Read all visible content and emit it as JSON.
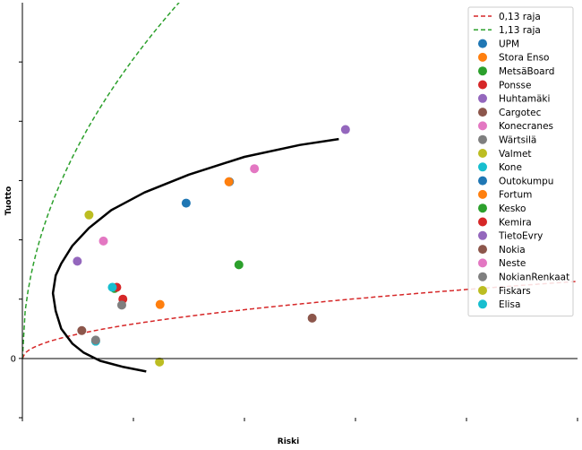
{
  "chart_data": {
    "type": "scatter",
    "title": "",
    "xlabel": "Riski",
    "ylabel": "Tuotto",
    "xlim": [
      0,
      1
    ],
    "ylim": [
      -0.1,
      0.6
    ],
    "yticks_labeled": [
      0
    ],
    "yticks_unlabeled": [
      -0.1,
      0.1,
      0.2,
      0.3,
      0.4,
      0.5
    ],
    "xticks_unlabeled": [
      0,
      0.2,
      0.4,
      0.6,
      0.8,
      1.0
    ],
    "grid": false,
    "legend_position": "top-right",
    "reference_lines": [
      {
        "name": "0,13 raja",
        "color": "#d62728",
        "style": "dashed",
        "coef": 0.13
      },
      {
        "name": "1,13 raja",
        "color": "#2ca02c",
        "style": "dashed",
        "coef": 1.13
      }
    ],
    "frontier": {
      "color": "#000000",
      "points": [
        [
          0.223,
          -0.022
        ],
        [
          0.18,
          -0.014
        ],
        [
          0.14,
          -0.004
        ],
        [
          0.11,
          0.01
        ],
        [
          0.09,
          0.025
        ],
        [
          0.07,
          0.05
        ],
        [
          0.06,
          0.08
        ],
        [
          0.055,
          0.11
        ],
        [
          0.06,
          0.14
        ],
        [
          0.07,
          0.16
        ],
        [
          0.09,
          0.19
        ],
        [
          0.12,
          0.22
        ],
        [
          0.16,
          0.25
        ],
        [
          0.22,
          0.28
        ],
        [
          0.3,
          0.31
        ],
        [
          0.4,
          0.34
        ],
        [
          0.5,
          0.36
        ],
        [
          0.57,
          0.37
        ]
      ]
    },
    "series": [
      {
        "name": "UPM",
        "color": "#1f77b4",
        "x": 0.295,
        "y": 0.262
      },
      {
        "name": "Stora Enso",
        "color": "#ff7f0e",
        "x": 0.248,
        "y": 0.091
      },
      {
        "name": "MetsäBoard",
        "color": "#2ca02c",
        "x": 0.39,
        "y": 0.158
      },
      {
        "name": "Ponsse",
        "color": "#d62728",
        "x": 0.181,
        "y": 0.1
      },
      {
        "name": "Huhtamäki",
        "color": "#9467bd",
        "x": 0.582,
        "y": 0.386
      },
      {
        "name": "Cargotec",
        "color": "#8c564b",
        "x": 0.107,
        "y": 0.047
      },
      {
        "name": "Konecranes",
        "color": "#e377c2",
        "x": 0.418,
        "y": 0.32
      },
      {
        "name": "Wärtsilä",
        "color": "#7f7f7f",
        "x": 0.179,
        "y": 0.09
      },
      {
        "name": "Valmet",
        "color": "#bcbd22",
        "x": 0.12,
        "y": 0.242
      },
      {
        "name": "Kone",
        "color": "#17becf",
        "x": 0.132,
        "y": 0.029
      },
      {
        "name": "Outokumpu",
        "color": "#1f77b4",
        "x": 0.373,
        "y": 0.298
      },
      {
        "name": "Fortum",
        "color": "#ff7f0e",
        "x": 0.372,
        "y": 0.298
      },
      {
        "name": "Kesko",
        "color": "#2ca02c",
        "x": 0.166,
        "y": 0.118
      },
      {
        "name": "Kemira",
        "color": "#d62728",
        "x": 0.17,
        "y": 0.12
      },
      {
        "name": "TietoEvry",
        "color": "#9467bd",
        "x": 0.099,
        "y": 0.164
      },
      {
        "name": "Nokia",
        "color": "#8c564b",
        "x": 0.522,
        "y": 0.068
      },
      {
        "name": "Neste",
        "color": "#e377c2",
        "x": 0.146,
        "y": 0.198
      },
      {
        "name": "NokianRenkaat",
        "color": "#7f7f7f",
        "x": 0.132,
        "y": 0.031
      },
      {
        "name": "Fiskars",
        "color": "#bcbd22",
        "x": 0.247,
        "y": -0.006
      },
      {
        "name": "Elisa",
        "color": "#17becf",
        "x": 0.162,
        "y": 0.12
      }
    ]
  }
}
